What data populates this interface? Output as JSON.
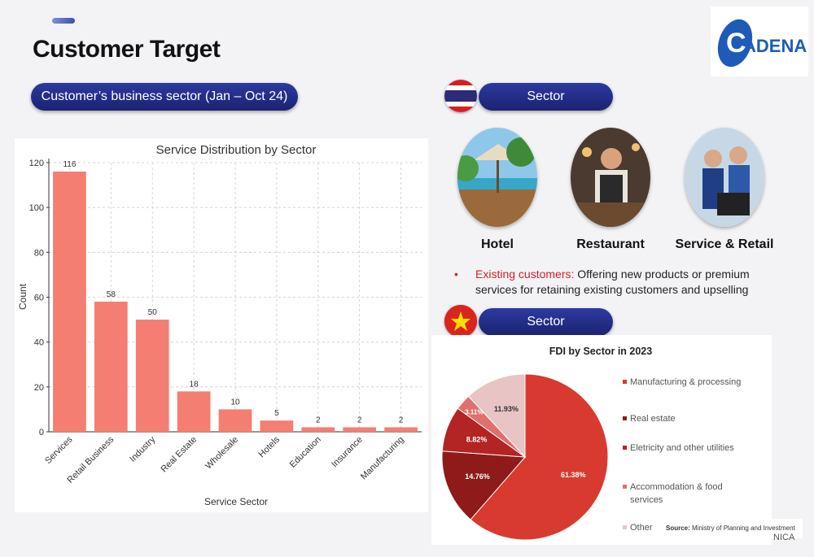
{
  "slide": {
    "title": "Customer Target",
    "left_pill": "Customer’s business sector (Jan – Oct 24)",
    "sector_pill_thai": "Sector",
    "sector_pill_vn": "Sector",
    "footer_fragment": "NICA"
  },
  "logo": {
    "text": "CADENA",
    "letter": "C",
    "brand_color": "#1e5bb8"
  },
  "thailand": {
    "sectors": [
      {
        "label": "Hotel"
      },
      {
        "label": "Restaurant"
      },
      {
        "label": "Service & Retail"
      }
    ],
    "bullet_highlight": "Existing customers:",
    "bullet_text": " Offering new products or premium services for retaining existing customers and upselling"
  },
  "pie_legend": {
    "items": [
      {
        "label": "Manufacturing & processing",
        "color": "#d93a2f"
      },
      {
        "label": "Real estate",
        "color": "#8e1a1a"
      },
      {
        "label": "Eletricity and other utilities",
        "color": "#b32424"
      },
      {
        "label": "Accommodation & food services",
        "color": "#e07070"
      },
      {
        "label": "Other",
        "color": "#e8c4c4"
      }
    ],
    "source_label": "Source:",
    "source_text": "Ministry of Planning and Investment"
  },
  "chart_data": [
    {
      "type": "bar",
      "title": "Service Distribution by Sector",
      "xlabel": "Service Sector",
      "ylabel": "Count",
      "categories": [
        "Services",
        "Retail Business",
        "Industry",
        "Real Estate",
        "Wholesale",
        "Hotels",
        "Education",
        "Insurance",
        "Manufacturing"
      ],
      "values": [
        116,
        58,
        50,
        18,
        10,
        5,
        2,
        2,
        2
      ],
      "ylim": [
        0,
        120
      ],
      "yticks": [
        0,
        20,
        40,
        60,
        80,
        100,
        120
      ],
      "grid": true,
      "bar_color": "#f47e72"
    },
    {
      "type": "pie",
      "title": "FDI by Sector in 2023",
      "slices": [
        {
          "label": "Manufacturing & processing",
          "value": 61.38,
          "text": "61.38%",
          "color": "#d93a2f"
        },
        {
          "label": "Real estate",
          "value": 14.76,
          "text": "14.76%",
          "color": "#8e1a1a"
        },
        {
          "label": "Eletricity and other utilities",
          "value": 8.82,
          "text": "8.82%",
          "color": "#b32424"
        },
        {
          "label": "Accommodation & food services",
          "value": 3.11,
          "text": "3.11%",
          "color": "#e07070"
        },
        {
          "label": "Other",
          "value": 11.93,
          "text": "11.93%",
          "color": "#e8c4c4"
        }
      ]
    }
  ]
}
